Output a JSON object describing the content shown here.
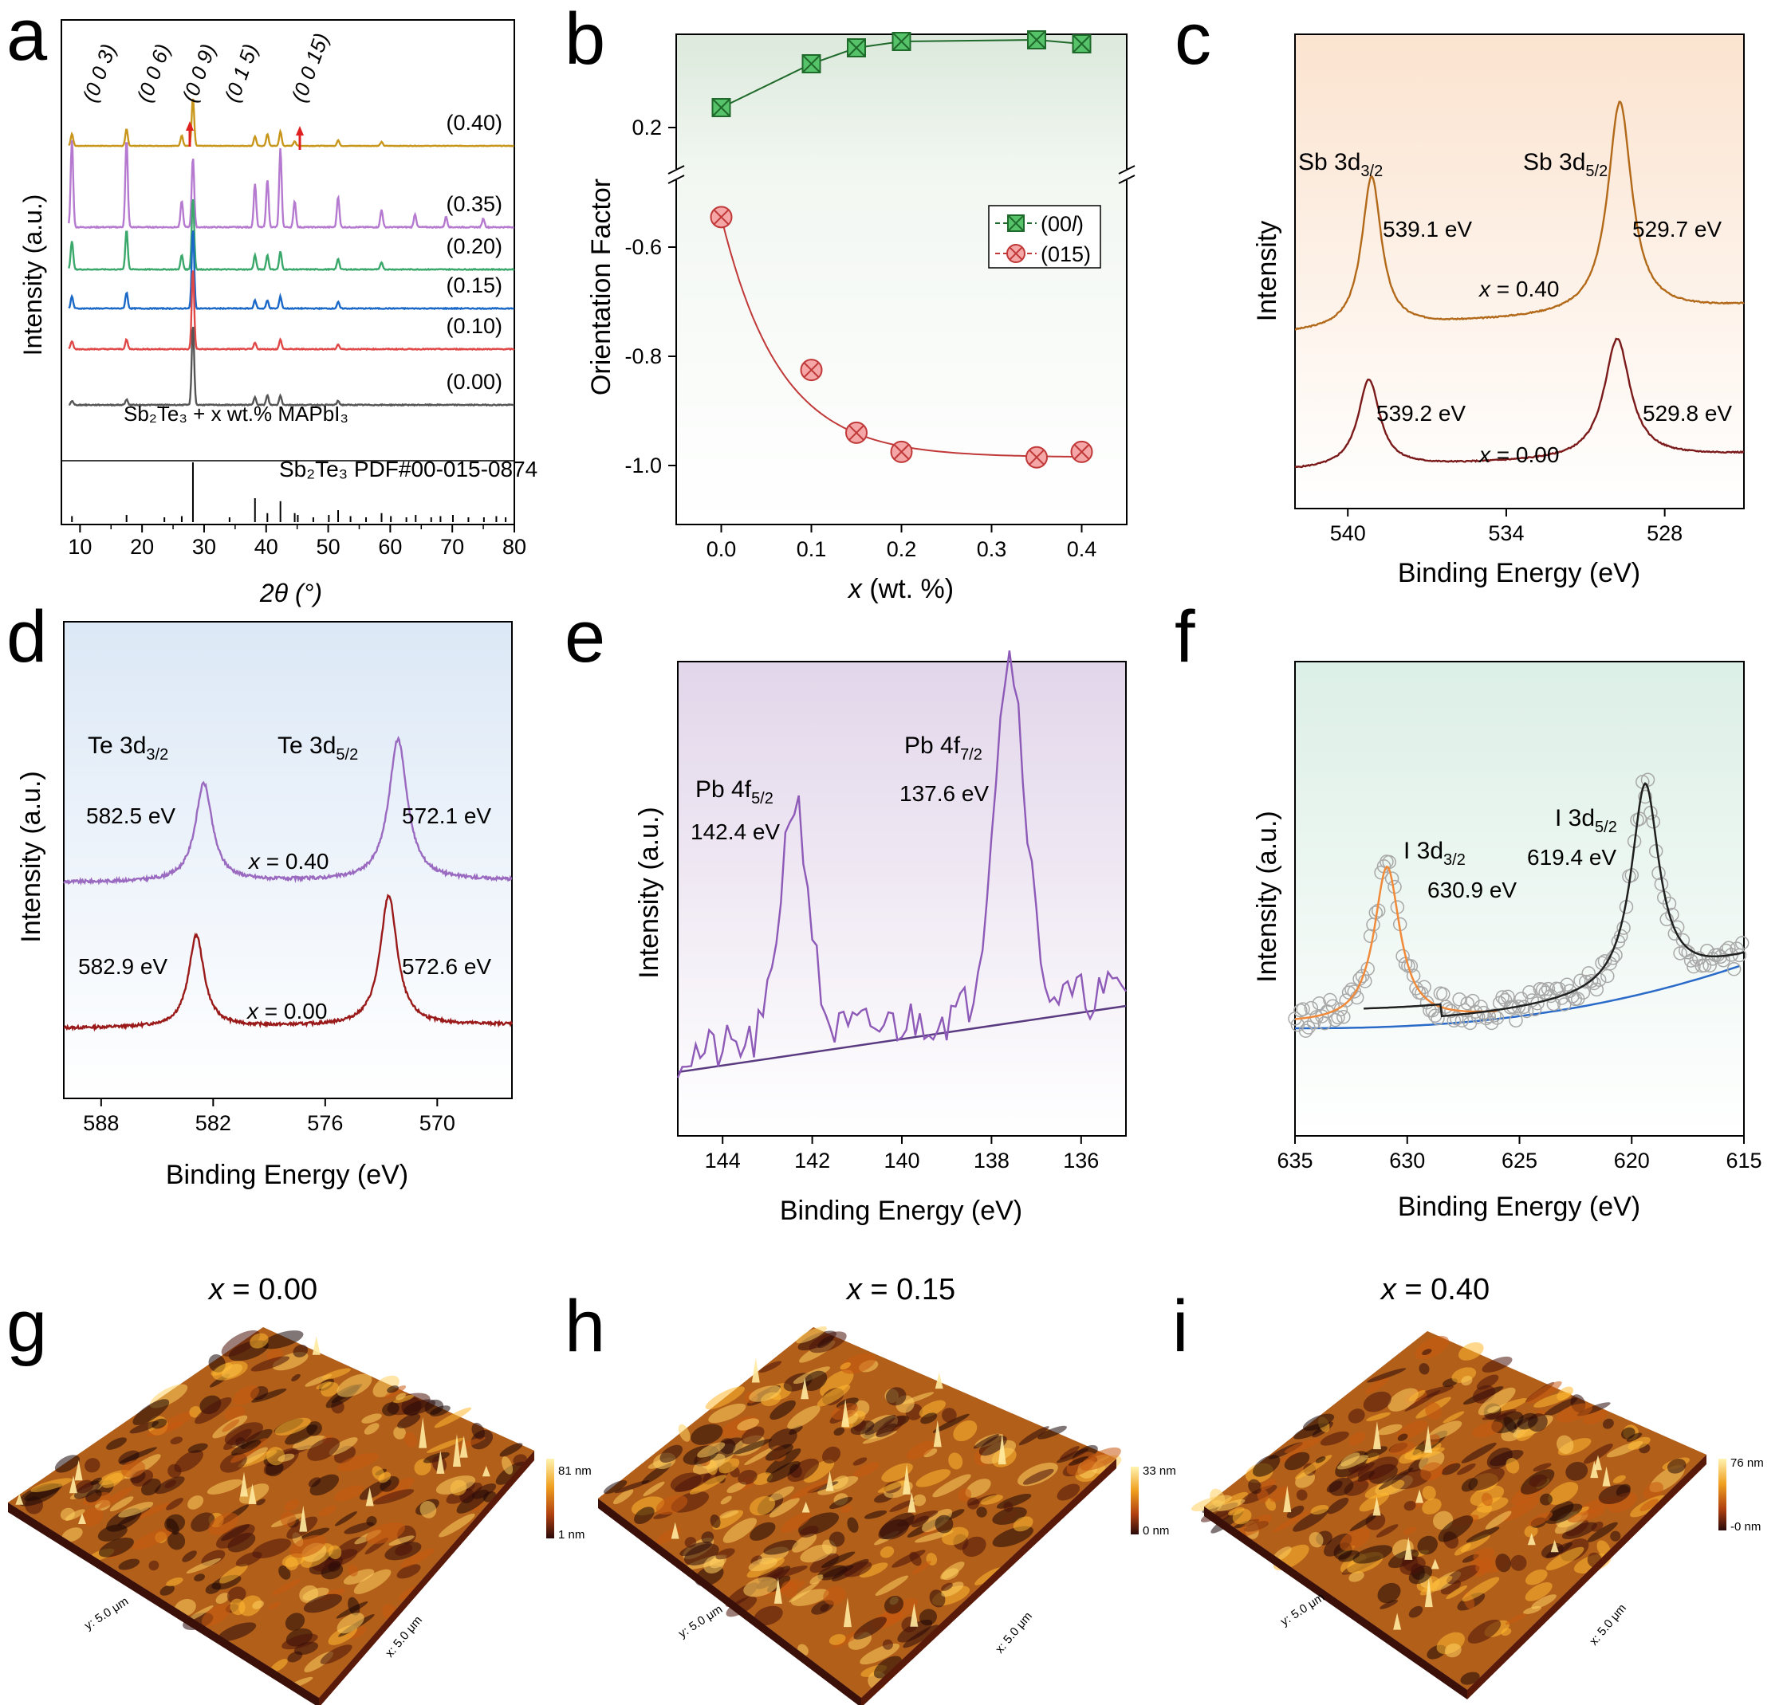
{
  "colors": {
    "a_series": [
      "#c8961a",
      "#b57ad0",
      "#3aa86a",
      "#1a68c8",
      "#e04848",
      "#555555"
    ],
    "b_00l_fill": "#56c26a",
    "b_00l_stroke": "#1f6a2b",
    "b_015_fill": "#f5a6a6",
    "b_015_stroke": "#c03838",
    "c_top": "#b26a1a",
    "c_bot": "#7a1a1a",
    "d_top": "#9a6ac0",
    "d_bot": "#9a1a1a",
    "e_line": "#8e5ab8",
    "e_base": "#5a3a80",
    "f_fit1": "#f08a3a",
    "f_fit2": "#202020",
    "f_base": "#2a6ac8",
    "f_pts": "#a8a8a8",
    "red_arrow": "#e02020"
  },
  "chart_data": [
    {
      "panel": "a",
      "type": "line",
      "panel_letter": "a",
      "xlabel": "2θ (°)",
      "ylabel": "Intensity (a.u.)",
      "xlim": [
        7,
        80
      ],
      "xticks": [
        "10",
        "20",
        "30",
        "40",
        "50",
        "60",
        "70",
        "80"
      ],
      "peak_labels": [
        "(0 0 3)",
        "(0 0 6)",
        "(0 0 9)",
        "(0 1 5)",
        "(0 0 15)"
      ],
      "peak_positions": [
        8.7,
        17.5,
        26.4,
        28.2,
        44.6
      ],
      "series": [
        {
          "name": "(0.40)",
          "peaks": [
            [
              8.7,
              0.25
            ],
            [
              17.5,
              0.35
            ],
            [
              26.4,
              0.22
            ],
            [
              28.2,
              1.0
            ],
            [
              38.2,
              0.2
            ],
            [
              40.2,
              0.25
            ],
            [
              42.3,
              0.3
            ],
            [
              44.6,
              0.1
            ],
            [
              51.6,
              0.12
            ],
            [
              58.6,
              0.08
            ]
          ]
        },
        {
          "name": "(0.35)",
          "peaks": [
            [
              8.7,
              1.0
            ],
            [
              17.5,
              1.0
            ],
            [
              26.4,
              0.3
            ],
            [
              28.2,
              0.8
            ],
            [
              38.2,
              0.5
            ],
            [
              40.2,
              0.55
            ],
            [
              42.3,
              0.9
            ],
            [
              44.6,
              0.3
            ],
            [
              51.6,
              0.35
            ],
            [
              58.6,
              0.2
            ],
            [
              64,
              0.15
            ],
            [
              69,
              0.12
            ],
            [
              75,
              0.1
            ]
          ]
        },
        {
          "name": "(0.20)",
          "peaks": [
            [
              8.7,
              0.4
            ],
            [
              17.5,
              0.55
            ],
            [
              26.4,
              0.2
            ],
            [
              28.2,
              1.0
            ],
            [
              38.2,
              0.2
            ],
            [
              40.2,
              0.2
            ],
            [
              42.3,
              0.25
            ],
            [
              51.6,
              0.15
            ],
            [
              58.6,
              0.1
            ]
          ]
        },
        {
          "name": "(0.15)",
          "peaks": [
            [
              8.7,
              0.15
            ],
            [
              17.5,
              0.2
            ],
            [
              28.2,
              1.0
            ],
            [
              38.2,
              0.1
            ],
            [
              40.2,
              0.1
            ],
            [
              42.3,
              0.15
            ],
            [
              51.6,
              0.08
            ]
          ]
        },
        {
          "name": "(0.10)",
          "peaks": [
            [
              8.7,
              0.1
            ],
            [
              17.5,
              0.12
            ],
            [
              28.2,
              1.0
            ],
            [
              38.2,
              0.08
            ],
            [
              42.3,
              0.12
            ],
            [
              51.6,
              0.06
            ]
          ]
        },
        {
          "name": "(0.00)",
          "peaks": [
            [
              8.7,
              0.05
            ],
            [
              17.5,
              0.07
            ],
            [
              28.2,
              1.0
            ],
            [
              38.2,
              0.1
            ],
            [
              40.2,
              0.12
            ],
            [
              42.3,
              0.12
            ],
            [
              51.6,
              0.05
            ]
          ]
        }
      ],
      "series_label": "Sb₂Te₃ + x wt.% MAPbI₃",
      "reference_label": "Sb₂Te₃ PDF#00-015-0874",
      "reference_lines": [
        [
          8.7,
          0.1
        ],
        [
          17.5,
          0.12
        ],
        [
          23.6,
          0.08
        ],
        [
          26.4,
          0.1
        ],
        [
          28.2,
          1.0
        ],
        [
          34.1,
          0.08
        ],
        [
          38.2,
          0.4
        ],
        [
          40.2,
          0.15
        ],
        [
          42.3,
          0.35
        ],
        [
          44.6,
          0.15
        ],
        [
          45.1,
          0.12
        ],
        [
          47.6,
          0.08
        ],
        [
          50.1,
          0.12
        ],
        [
          51.6,
          0.2
        ],
        [
          53.6,
          0.1
        ],
        [
          56.1,
          0.08
        ],
        [
          58.6,
          0.15
        ],
        [
          60.1,
          0.1
        ],
        [
          62.6,
          0.08
        ],
        [
          64.1,
          0.12
        ],
        [
          66.6,
          0.08
        ],
        [
          68.1,
          0.1
        ],
        [
          70.1,
          0.12
        ],
        [
          72.6,
          0.08
        ],
        [
          75.1,
          0.08
        ],
        [
          77.1,
          0.1
        ],
        [
          78.6,
          0.08
        ]
      ]
    },
    {
      "panel": "b",
      "type": "line",
      "panel_letter": "b",
      "xlabel": "x (wt. %)",
      "ylabel": "Orientation Factor",
      "xlim": [
        -0.05,
        0.45
      ],
      "xticks": [
        "0.0",
        "0.1",
        "0.2",
        "0.3",
        "0.4"
      ],
      "yticks_upper": [
        "0.2"
      ],
      "yticks_lower": [
        "-0.6",
        "-0.8",
        "-1.0"
      ],
      "x": [
        0.0,
        0.1,
        0.15,
        0.2,
        0.35,
        0.4
      ],
      "series": [
        {
          "name": "(00l)",
          "values": [
            0.225,
            0.28,
            0.3,
            0.308,
            0.31,
            0.305
          ]
        },
        {
          "name": "(015)",
          "values": [
            -0.545,
            -0.825,
            -0.94,
            -0.975,
            -0.985,
            -0.975
          ]
        }
      ]
    },
    {
      "panel": "c",
      "type": "line",
      "panel_letter": "c",
      "xlabel": "Binding Energy (eV)",
      "ylabel": "Intensity",
      "xlim": [
        542,
        525
      ],
      "xticks": [
        "540",
        "534",
        "528"
      ],
      "peak_names": [
        "Sb 3d3/2",
        "Sb 3d5/2"
      ],
      "series": [
        {
          "name": "x = 0.40",
          "peaks": [
            539.1,
            529.7
          ],
          "peak_labels": [
            "539.1 eV",
            "529.7 eV"
          ]
        },
        {
          "name": "x = 0.00",
          "peaks": [
            539.2,
            529.8
          ],
          "peak_labels": [
            "539.2 eV",
            "529.8 eV"
          ]
        }
      ]
    },
    {
      "panel": "d",
      "type": "line",
      "panel_letter": "d",
      "xlabel": "Binding Energy (eV)",
      "ylabel": "Intensity (a.u.)",
      "xlim": [
        590,
        566
      ],
      "xticks": [
        "588",
        "582",
        "576",
        "570"
      ],
      "peak_names": [
        "Te 3d3/2",
        "Te 3d5/2"
      ],
      "series": [
        {
          "name": "x = 0.40",
          "peaks": [
            582.5,
            572.1
          ],
          "peak_labels": [
            "582.5 eV",
            "572.1 eV"
          ]
        },
        {
          "name": "x = 0.00",
          "peaks": [
            582.9,
            572.6
          ],
          "peak_labels": [
            "582.9 eV",
            "572.6 eV"
          ]
        }
      ]
    },
    {
      "panel": "e",
      "type": "line",
      "panel_letter": "e",
      "xlabel": "Binding Energy (eV)",
      "ylabel": "Intensity (a.u.)",
      "xlim": [
        145,
        135
      ],
      "xticks": [
        "144",
        "142",
        "140",
        "138",
        "136"
      ],
      "peak_names": [
        "Pb 4f5/2",
        "Pb 4f7/2"
      ],
      "peaks": [
        142.4,
        137.6
      ],
      "peak_labels": [
        "142.4 eV",
        "137.6 eV"
      ]
    },
    {
      "panel": "f",
      "type": "scatter",
      "panel_letter": "f",
      "xlabel": "Binding Energy (eV)",
      "ylabel": "Intensity (a.u.)",
      "xlim": [
        635,
        615
      ],
      "xticks": [
        "635",
        "630",
        "625",
        "620",
        "615"
      ],
      "peak_names": [
        "I 3d3/2",
        "I 3d5/2"
      ],
      "peaks": [
        630.9,
        619.4
      ],
      "peak_labels": [
        "630.9 eV",
        "619.4 eV"
      ]
    }
  ],
  "afm": [
    {
      "letter": "g",
      "title": "x = 0.00",
      "z_top": "81 nm",
      "z_bottom": "1 nm",
      "y_axis": "y: 5.0 μm",
      "x_axis": "x: 5.0 μm"
    },
    {
      "letter": "h",
      "title": "x = 0.15",
      "z_top": "33 nm",
      "z_bottom": "0 nm",
      "y_axis": "y: 5.0 μm",
      "x_axis": "x: 5.0 μm"
    },
    {
      "letter": "i",
      "title": "x = 0.40",
      "z_top": "76 nm",
      "z_bottom": "-0 nm",
      "y_axis": "y: 5.0 μm",
      "x_axis": "x: 5.0 μm"
    }
  ]
}
